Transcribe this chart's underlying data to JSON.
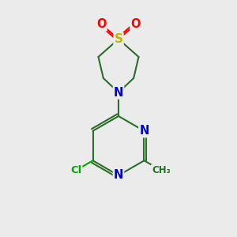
{
  "bg_color": "#ebebeb",
  "bond_color": "#2a6e2a",
  "bond_width": 1.5,
  "atom_colors": {
    "S": "#b8b800",
    "O": "#ff0000",
    "N": "#0000cc",
    "Cl": "#00aa00",
    "C": "#2a6e2a"
  },
  "figsize": [
    3.0,
    3.0
  ],
  "dpi": 100
}
